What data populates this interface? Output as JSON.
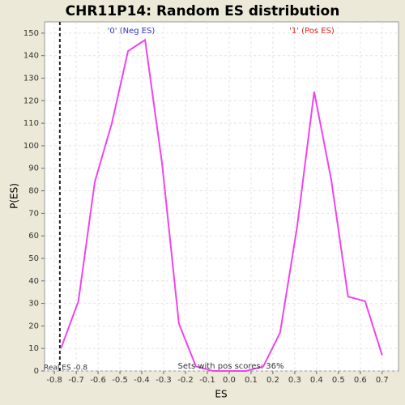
{
  "chart_data": {
    "type": "line",
    "title": "CHR11P14: Random ES distribution",
    "x_label": "ES",
    "y_label": "P(ES)",
    "x": [
      -0.77,
      -0.69,
      -0.615,
      -0.537,
      -0.463,
      -0.385,
      -0.307,
      -0.23,
      -0.152,
      -0.074,
      0,
      0.078,
      0.156,
      0.233,
      0.311,
      0.389,
      0.467,
      0.544,
      0.622,
      0.7
    ],
    "values": [
      10,
      31,
      84,
      110,
      142,
      147,
      92,
      21,
      2,
      0,
      0,
      0,
      2,
      17,
      64,
      124,
      85,
      33,
      31,
      7
    ],
    "color": "#ee44ee",
    "xlim": [
      -0.845,
      0.775
    ],
    "ylim": [
      0,
      155
    ],
    "xticks": [
      -0.8,
      -0.7,
      -0.6,
      -0.5,
      -0.4,
      -0.3,
      -0.2,
      -0.1,
      {
        "value": 0,
        "label": "0.0"
      },
      0.1,
      0.2,
      0.3,
      0.4,
      0.5,
      0.6,
      0.7
    ],
    "yticks": [
      0,
      10,
      20,
      30,
      40,
      50,
      60,
      70,
      80,
      90,
      100,
      110,
      120,
      130,
      140,
      150
    ],
    "grid": true,
    "real_es": -0.775,
    "real_es_label": "Real ES -0.8",
    "neg_label": "'0' (Neg ES)",
    "neg_color": "#3333cc",
    "pos_label": "'1' (Pos ES)",
    "pos_color": "#dd2222",
    "footer": "Sets with pos scores: 36%"
  }
}
